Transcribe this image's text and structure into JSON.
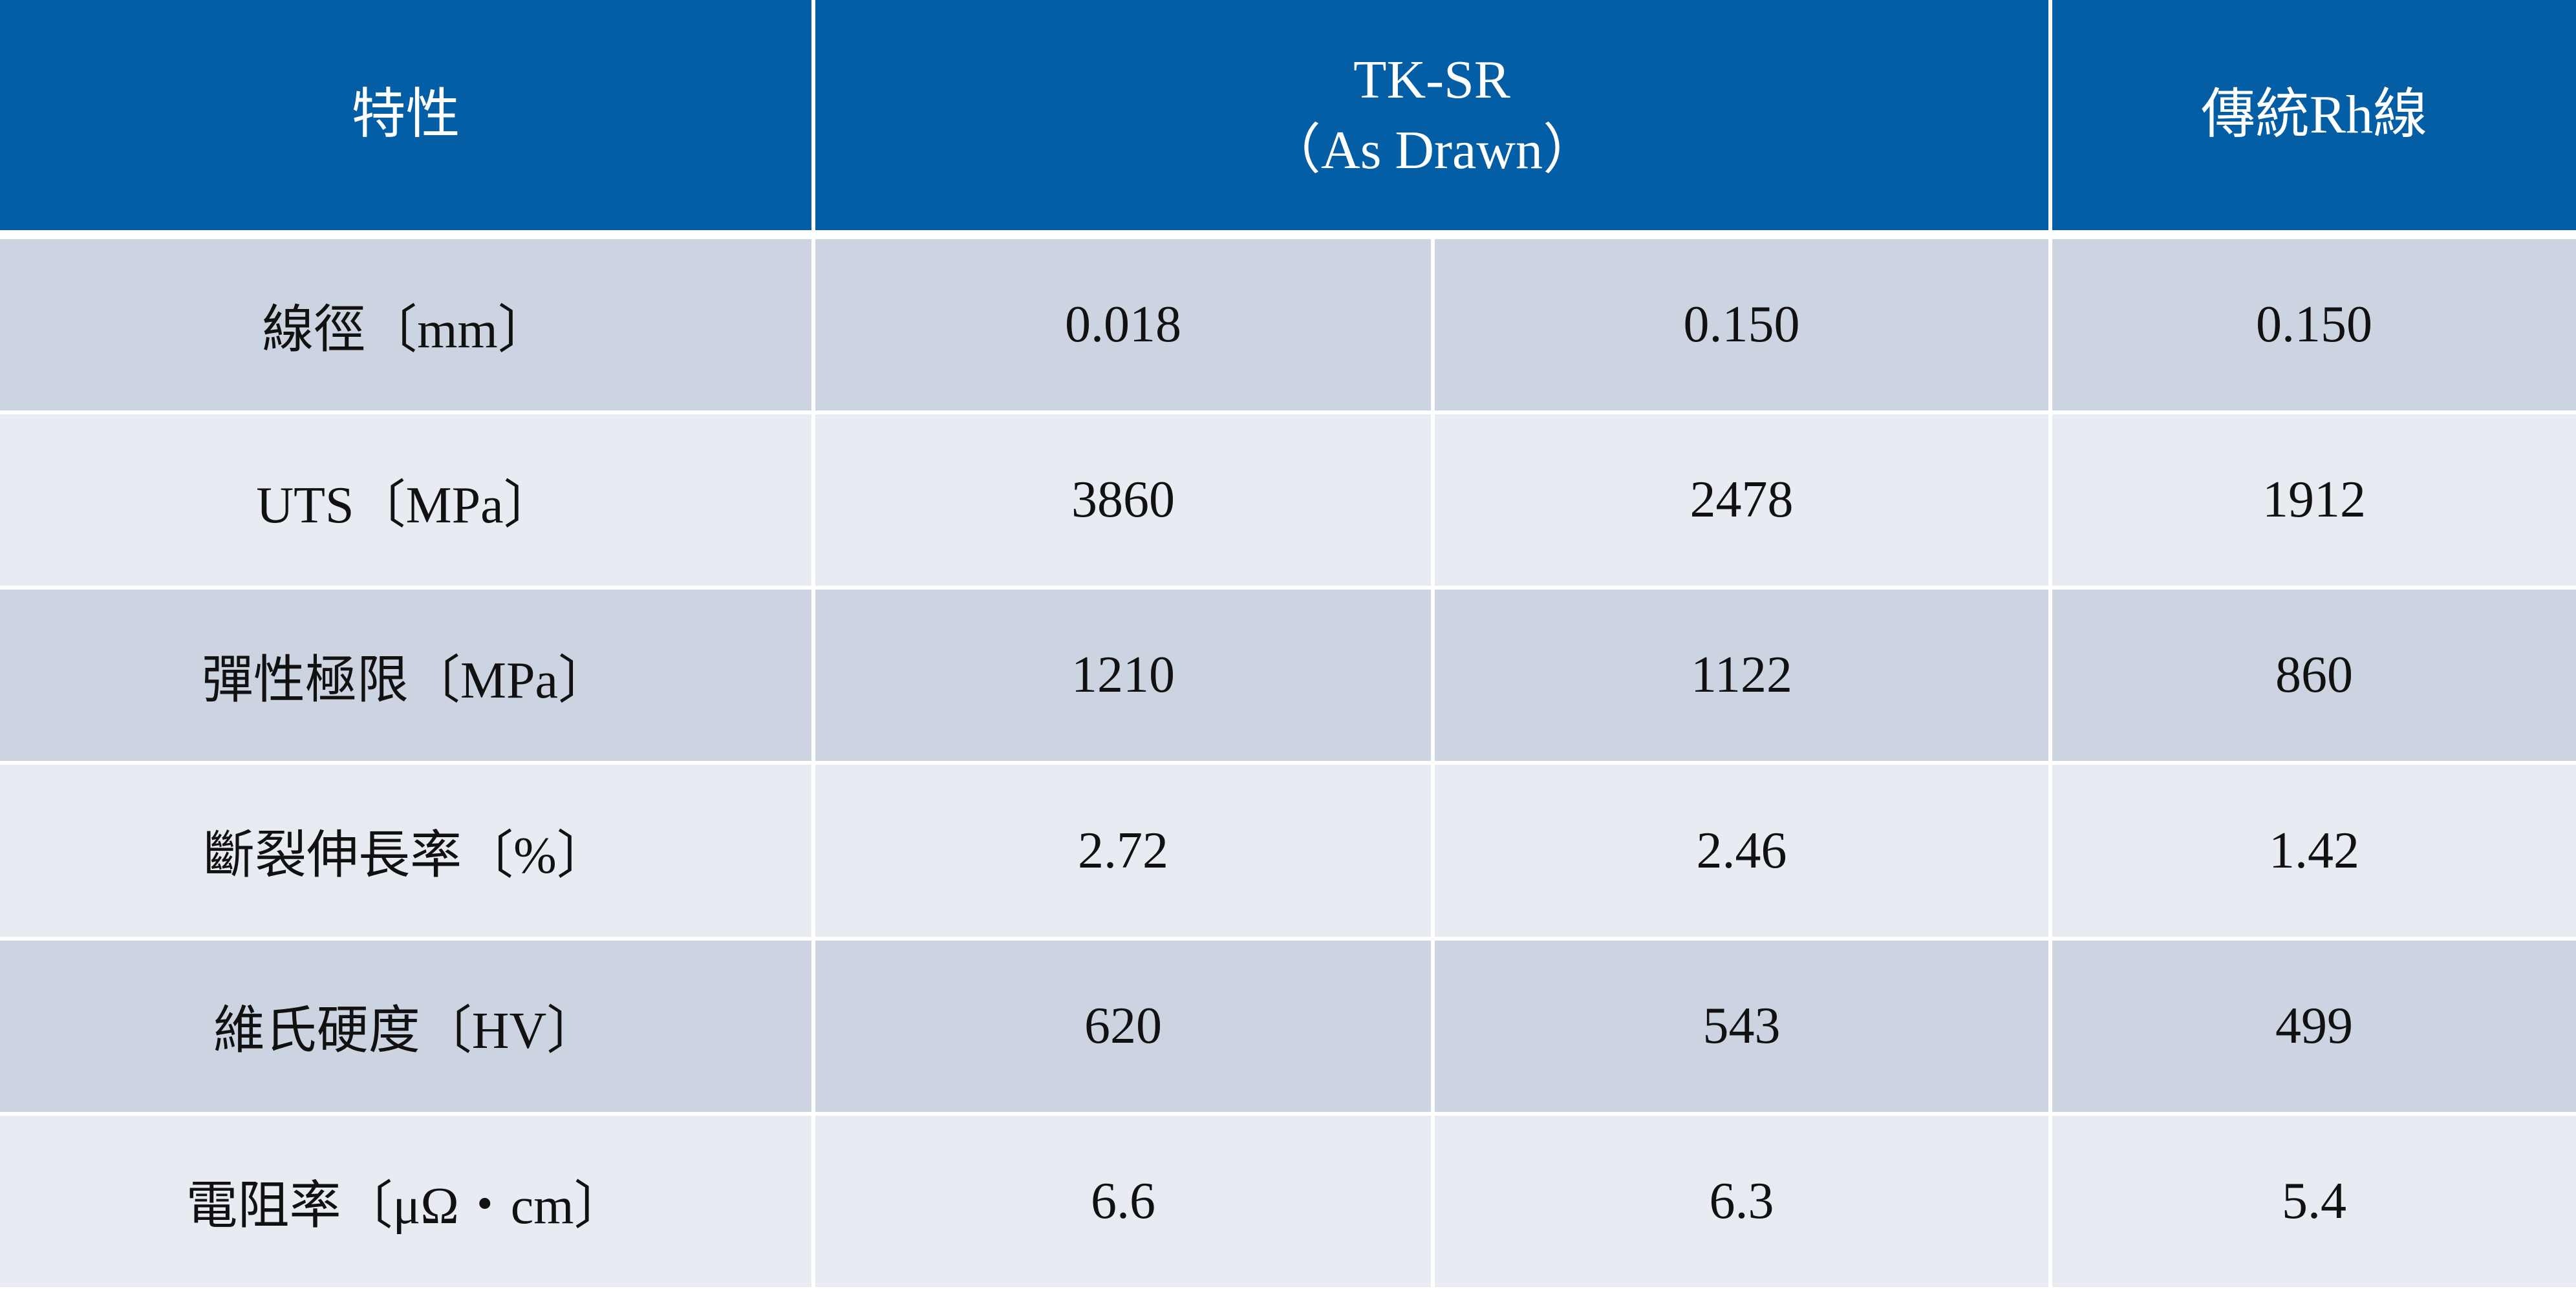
{
  "header": {
    "property": "特性",
    "tk_sr": "TK-SR",
    "tk_sr_note": "（As Drawn）",
    "traditional": "傳統Rh線"
  },
  "table": {
    "rows": [
      [
        "線徑〔mm〕",
        "0.018",
        "0.150",
        "0.150"
      ],
      [
        "UTS〔MPa〕",
        "3860",
        "2478",
        "1912"
      ],
      [
        "彈性極限〔MPa〕",
        "1210",
        "1122",
        "860"
      ],
      [
        "斷裂伸長率〔%〕",
        "2.72",
        "2.46",
        "1.42"
      ],
      [
        "維氏硬度〔HV〕",
        "620",
        "543",
        "499"
      ],
      [
        "電阻率〔μΩ・cm〕",
        "6.6",
        "6.3",
        "5.4"
      ]
    ]
  }
}
